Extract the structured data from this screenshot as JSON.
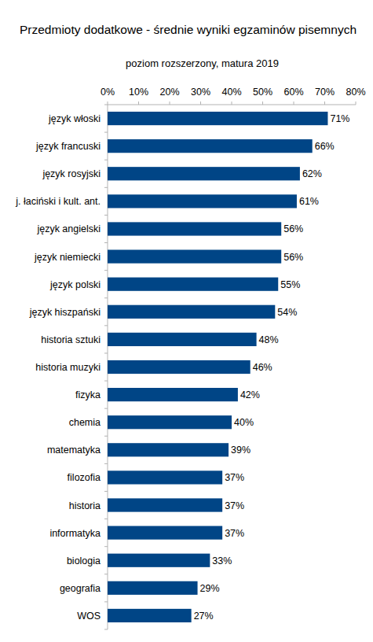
{
  "chart_data": {
    "type": "bar",
    "orientation": "horizontal",
    "title": "Przedmioty dodatkowe - średnie wyniki egzaminów pisemnych",
    "subtitle": "poziom rozszerzony, matura 2019",
    "categories": [
      "język włoski",
      "język francuski",
      "język rosyjski",
      "j. łaciński i kult. ant.",
      "język angielski",
      "język niemiecki",
      "język polski",
      "język hiszpański",
      "historia sztuki",
      "historia muzyki",
      "fizyka",
      "chemia",
      "matematyka",
      "filozofia",
      "historia",
      "informatyka",
      "biologia",
      "geografia",
      "WOS"
    ],
    "values": [
      71,
      66,
      62,
      61,
      56,
      56,
      55,
      54,
      48,
      46,
      42,
      40,
      39,
      37,
      37,
      37,
      33,
      29,
      27
    ],
    "value_labels": [
      "71%",
      "66%",
      "62%",
      "61%",
      "56%",
      "56%",
      "55%",
      "54%",
      "48%",
      "46%",
      "42%",
      "40%",
      "39%",
      "37%",
      "37%",
      "37%",
      "33%",
      "29%",
      "27%"
    ],
    "color": "#004586",
    "xlim": [
      0,
      80
    ],
    "xticks": [
      {
        "value": 0,
        "label": "0%"
      },
      {
        "value": 10,
        "label": "10%"
      },
      {
        "value": 20,
        "label": "20%"
      },
      {
        "value": 30,
        "label": "30%"
      },
      {
        "value": 40,
        "label": "40%"
      },
      {
        "value": 50,
        "label": "50%"
      },
      {
        "value": 60,
        "label": "60%"
      },
      {
        "value": 70,
        "label": "70%"
      },
      {
        "value": 80,
        "label": "80%"
      }
    ],
    "grid": false,
    "data_labels": true
  }
}
